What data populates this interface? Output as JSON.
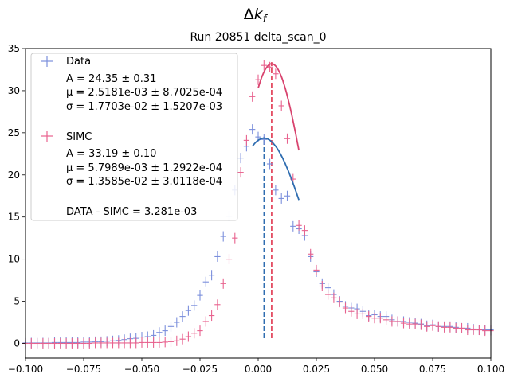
{
  "chart_data": {
    "type": "scatter",
    "suptitle": "Δk_f",
    "title": "Run 20851 delta_scan_0",
    "xlim": [
      -0.1,
      0.1
    ],
    "ylim": [
      -1.75,
      35.0
    ],
    "xticks": [
      "−0.100",
      "−0.075",
      "−0.050",
      "−0.025",
      "0.000",
      "0.025",
      "0.050",
      "0.075",
      "0.100"
    ],
    "yticks": [
      "0",
      "5",
      "10",
      "15",
      "20",
      "25",
      "30",
      "35"
    ],
    "legend_position": "top-left",
    "colors": {
      "data_marker": "#7b8fdc",
      "data_fit": "#2f6db0",
      "data_mean_line": "#2f6db0",
      "simc_marker": "#e8628e",
      "simc_fit": "#d8436e",
      "simc_mean_line": "#e0344c"
    },
    "series": [
      {
        "name": "Data",
        "x": [
          -0.1,
          -0.0975,
          -0.095,
          -0.0925,
          -0.09,
          -0.0875,
          -0.085,
          -0.0825,
          -0.08,
          -0.0775,
          -0.075,
          -0.0725,
          -0.07,
          -0.0675,
          -0.065,
          -0.0625,
          -0.06,
          -0.0575,
          -0.055,
          -0.0525,
          -0.05,
          -0.0475,
          -0.045,
          -0.0425,
          -0.04,
          -0.0375,
          -0.035,
          -0.0325,
          -0.03,
          -0.0275,
          -0.025,
          -0.0225,
          -0.02,
          -0.0175,
          -0.015,
          -0.0125,
          -0.01,
          -0.0075,
          -0.005,
          -0.0025,
          0.0,
          0.0025,
          0.005,
          0.0075,
          0.01,
          0.0125,
          0.015,
          0.0175,
          0.02,
          0.0225,
          0.025,
          0.0275,
          0.03,
          0.0325,
          0.035,
          0.0375,
          0.04,
          0.0425,
          0.045,
          0.0475,
          0.05,
          0.0525,
          0.055,
          0.0575,
          0.06,
          0.0625,
          0.065,
          0.0675,
          0.07,
          0.0725,
          0.075,
          0.0775,
          0.08,
          0.0825,
          0.085,
          0.0875,
          0.09,
          0.0925,
          0.095,
          0.0975,
          0.1
        ],
        "y": [
          0.05,
          0.05,
          0.05,
          0.05,
          0.05,
          0.1,
          0.1,
          0.1,
          0.1,
          0.1,
          0.15,
          0.15,
          0.2,
          0.2,
          0.25,
          0.3,
          0.35,
          0.45,
          0.55,
          0.6,
          0.75,
          0.8,
          0.95,
          1.3,
          1.5,
          2.0,
          2.5,
          3.2,
          3.9,
          4.5,
          5.7,
          7.3,
          8.1,
          10.3,
          12.7,
          15.1,
          18.2,
          22.0,
          23.4,
          25.4,
          24.5,
          24.2,
          21.3,
          18.2,
          17.2,
          17.5,
          13.9,
          13.6,
          12.8,
          10.3,
          8.5,
          7.1,
          6.6,
          5.8,
          5.0,
          4.4,
          4.2,
          4.1,
          3.8,
          3.3,
          3.4,
          3.2,
          3.2,
          2.8,
          2.6,
          2.6,
          2.5,
          2.4,
          2.3,
          2.1,
          2.2,
          2.0,
          2.0,
          2.0,
          1.9,
          1.8,
          1.8,
          1.7,
          1.6,
          1.6,
          1.6
        ]
      },
      {
        "name": "SIMC",
        "x": [
          -0.1,
          -0.0975,
          -0.095,
          -0.0925,
          -0.09,
          -0.0875,
          -0.085,
          -0.0825,
          -0.08,
          -0.0775,
          -0.075,
          -0.0725,
          -0.07,
          -0.0675,
          -0.065,
          -0.0625,
          -0.06,
          -0.0575,
          -0.055,
          -0.0525,
          -0.05,
          -0.0475,
          -0.045,
          -0.0425,
          -0.04,
          -0.0375,
          -0.035,
          -0.0325,
          -0.03,
          -0.0275,
          -0.025,
          -0.0225,
          -0.02,
          -0.0175,
          -0.015,
          -0.0125,
          -0.01,
          -0.0075,
          -0.005,
          -0.0025,
          0.0,
          0.0025,
          0.005,
          0.0075,
          0.01,
          0.0125,
          0.015,
          0.0175,
          0.02,
          0.0225,
          0.025,
          0.0275,
          0.03,
          0.0325,
          0.035,
          0.0375,
          0.04,
          0.0425,
          0.045,
          0.0475,
          0.05,
          0.0525,
          0.055,
          0.0575,
          0.06,
          0.0625,
          0.065,
          0.0675,
          0.07,
          0.0725,
          0.075,
          0.0775,
          0.08,
          0.0825,
          0.085,
          0.0875,
          0.09,
          0.0925,
          0.095,
          0.0975,
          0.1
        ],
        "y": [
          0.0,
          0.0,
          0.0,
          0.0,
          0.0,
          0.0,
          0.0,
          0.0,
          0.0,
          0.0,
          0.0,
          0.0,
          0.05,
          0.05,
          0.05,
          0.05,
          0.05,
          0.05,
          0.05,
          0.05,
          0.1,
          0.1,
          0.1,
          0.1,
          0.15,
          0.2,
          0.3,
          0.5,
          0.8,
          1.2,
          1.5,
          2.6,
          3.3,
          4.6,
          7.1,
          10.0,
          12.5,
          20.3,
          24.1,
          29.3,
          31.3,
          33.0,
          32.8,
          32.0,
          28.2,
          24.3,
          19.5,
          14.0,
          13.4,
          10.6,
          8.7,
          6.8,
          5.8,
          5.4,
          4.9,
          4.2,
          3.8,
          3.5,
          3.5,
          3.2,
          3.0,
          3.0,
          2.8,
          2.6,
          2.6,
          2.4,
          2.3,
          2.3,
          2.2,
          2.0,
          2.1,
          2.0,
          1.9,
          1.9,
          1.8,
          1.8,
          1.6,
          1.6,
          1.6,
          1.5,
          1.5
        ]
      }
    ],
    "fits": [
      {
        "x_range": [
          -0.0025,
          0.0175
        ],
        "A": 24.35,
        "mu": 0.0025181,
        "sigma": 0.017703
      },
      {
        "x_range": [
          0.0,
          0.0175
        ],
        "A": 33.19,
        "mu": 0.0057989,
        "sigma": 0.013585
      }
    ],
    "mean_lines": [
      0.0025181,
      0.0057989
    ],
    "legend": {
      "data_label": "Data",
      "data_A": "A = 24.35 ± 0.31",
      "data_mu": "μ = 2.5181e-03 ± 8.7025e-04",
      "data_sigma": "σ = 1.7703e-02 ± 1.5207e-03",
      "simc_label": "SIMC",
      "simc_A": "A = 33.19 ± 0.10",
      "simc_mu": "μ = 5.7989e-03 ± 1.2922e-04",
      "simc_sigma": "σ = 1.3585e-02 ± 3.0118e-04",
      "diff": "DATA - SIMC = 3.281e-03"
    }
  }
}
